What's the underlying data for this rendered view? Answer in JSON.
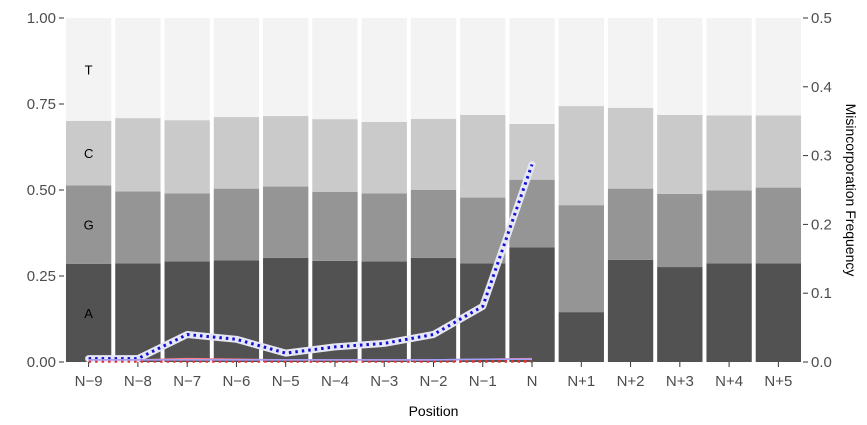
{
  "chart_data": {
    "type": "bar",
    "subtype": "stacked-proportion-with-line-overlay",
    "xlabel": "Position",
    "ylabel_left": "",
    "ylabel_right": "Misincorporation Frequency",
    "ylim_left": [
      0,
      1
    ],
    "ylim_right": [
      0,
      0.5
    ],
    "yticks_left": [
      "0.00",
      "0.25",
      "0.50",
      "0.75",
      "1.00"
    ],
    "yticks_right": [
      "0.0",
      "0.1",
      "0.2",
      "0.3",
      "0.4",
      "0.5"
    ],
    "grid": false,
    "categories": [
      "N−9",
      "N−8",
      "N−7",
      "N−6",
      "N−5",
      "N−4",
      "N−3",
      "N−2",
      "N−1",
      "N",
      "N+1",
      "N+2",
      "N+3",
      "N+4",
      "N+5"
    ],
    "series": [
      {
        "name": "A",
        "color": "#525252",
        "values": [
          0.285,
          0.287,
          0.292,
          0.295,
          0.303,
          0.294,
          0.292,
          0.303,
          0.287,
          0.333,
          0.145,
          0.297,
          0.276,
          0.287,
          0.287
        ]
      },
      {
        "name": "G",
        "color": "#959595",
        "values": [
          0.228,
          0.209,
          0.198,
          0.209,
          0.207,
          0.201,
          0.198,
          0.197,
          0.191,
          0.197,
          0.311,
          0.207,
          0.213,
          0.212,
          0.22
        ]
      },
      {
        "name": "C",
        "color": "#cacaca",
        "values": [
          0.188,
          0.213,
          0.213,
          0.208,
          0.205,
          0.211,
          0.208,
          0.207,
          0.24,
          0.162,
          0.288,
          0.235,
          0.229,
          0.218,
          0.21
        ]
      },
      {
        "name": "T",
        "color": "#f3f3f3",
        "values": [
          0.299,
          0.291,
          0.297,
          0.288,
          0.285,
          0.294,
          0.302,
          0.293,
          0.282,
          0.308,
          0.256,
          0.261,
          0.282,
          0.283,
          0.283
        ]
      }
    ],
    "stack_labels": {
      "A": "A",
      "G": "G",
      "C": "C",
      "T": "T"
    },
    "lines": [
      {
        "color": "#1010d0",
        "style": "dotted-with-white-halo",
        "x": [
          "N−9",
          "N−8",
          "N−7",
          "N−6",
          "N−5",
          "N−4",
          "N−3",
          "N−2",
          "N−1",
          "N"
        ],
        "values": [
          0.005,
          0.005,
          0.04,
          0.033,
          0.013,
          0.022,
          0.027,
          0.04,
          0.081,
          0.287
        ]
      },
      {
        "color": "#e03030",
        "style": "dotted",
        "x": [
          "N−9",
          "N−8",
          "N−7",
          "N−6",
          "N−5",
          "N−4",
          "N−3",
          "N−2",
          "N−1",
          "N"
        ],
        "values": [
          0.001,
          0.001,
          0.001,
          0.001,
          0.001,
          0.001,
          0.001,
          0.001,
          0.001,
          0.001
        ]
      },
      {
        "color": "#ff8080",
        "style": "solid",
        "x": [
          "N−9",
          "N−8",
          "N−7",
          "N−6",
          "N−5",
          "N−4",
          "N−3",
          "N−2",
          "N−1",
          "N"
        ],
        "values": [
          0.003,
          0.003,
          0.005,
          0.004,
          0.003,
          0.003,
          0.003,
          0.003,
          0.004,
          0.005
        ]
      },
      {
        "color": "#a0a0ff",
        "style": "solid",
        "x": [
          "N−9",
          "N−8",
          "N−7",
          "N−6",
          "N−5",
          "N−4",
          "N−3",
          "N−2",
          "N−1",
          "N"
        ],
        "values": [
          0.003,
          0.003,
          0.003,
          0.003,
          0.003,
          0.003,
          0.003,
          0.003,
          0.004,
          0.004
        ]
      }
    ]
  }
}
